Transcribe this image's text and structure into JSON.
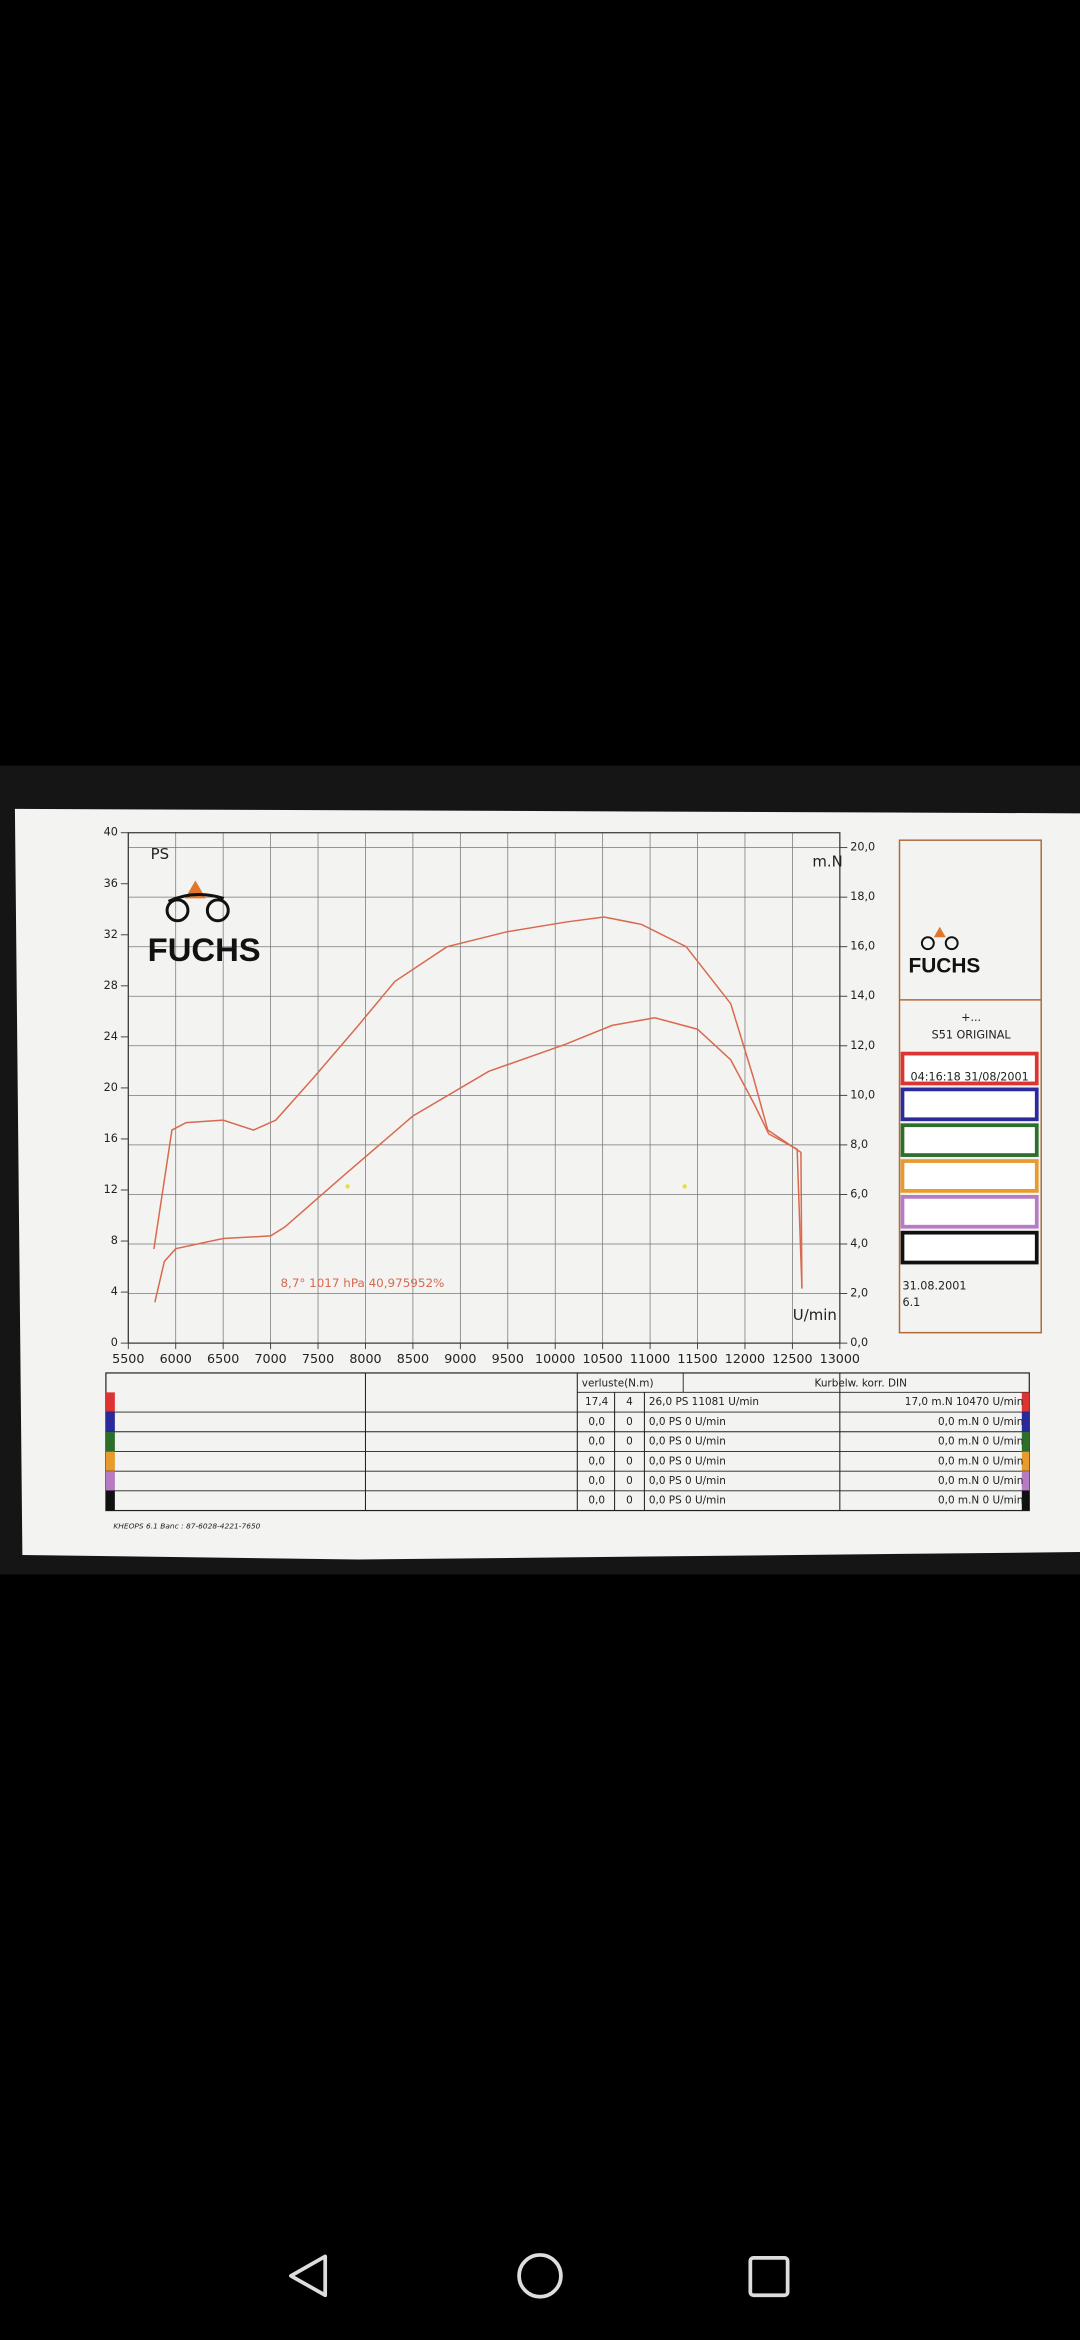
{
  "chart_data": {
    "type": "line",
    "ylabel": "PS",
    "y2label": "m.N",
    "xlabel": "U/min",
    "annotation": "8,7°  1017 hPa  40,975952%",
    "xlim": [
      5500,
      13000
    ],
    "xticks": [
      5500,
      6000,
      6500,
      7000,
      7500,
      8000,
      8500,
      9000,
      9500,
      10000,
      10500,
      11000,
      11500,
      12000,
      12500,
      13000
    ],
    "ylim": [
      0,
      40
    ],
    "yticks": [
      0,
      4,
      8,
      12,
      16,
      20,
      24,
      28,
      32,
      36,
      40
    ],
    "y2lim": [
      0,
      20.6
    ],
    "y2ticks": [
      {
        "value": 0,
        "label": "0,0"
      },
      {
        "value": 2,
        "label": "2,0"
      },
      {
        "value": 4,
        "label": "4,0"
      },
      {
        "value": 6,
        "label": "6,0"
      },
      {
        "value": 8,
        "label": "8,0"
      },
      {
        "value": 10,
        "label": "10,0"
      },
      {
        "value": 12,
        "label": "12,0"
      },
      {
        "value": 14,
        "label": "14,0"
      },
      {
        "value": 16,
        "label": "16,0"
      },
      {
        "value": 18,
        "label": "18,0"
      },
      {
        "value": 20,
        "label": "20,0"
      }
    ],
    "grid": true,
    "series": [
      {
        "color": "#d9694f",
        "x": [
          5780,
          5880,
          6000,
          6500,
          7000,
          7150,
          7750,
          8500,
          9300,
          10100,
          10600,
          11050,
          11500,
          11850,
          12100,
          12250,
          12550,
          12600
        ],
        "values": [
          3.2,
          6.4,
          7.4,
          8.2,
          8.4,
          9.1,
          13.0,
          17.8,
          21.3,
          23.4,
          24.9,
          25.5,
          24.6,
          22.2,
          18.7,
          16.4,
          15.2,
          4.4
        ]
      },
      {
        "color": "#d9694f",
        "axis": "y2",
        "x": [
          5770,
          5960,
          6110,
          6500,
          6820,
          7055,
          7450,
          7920,
          8310,
          8860,
          9490,
          10120,
          10515,
          10910,
          11380,
          11850,
          12090,
          12240,
          12590,
          12600
        ],
        "values": [
          3.8,
          8.6,
          8.9,
          9.0,
          8.6,
          9.0,
          10.7,
          12.8,
          14.6,
          16.0,
          16.6,
          17.0,
          17.2,
          16.9,
          16.0,
          13.7,
          10.7,
          8.6,
          7.7,
          2.2
        ]
      }
    ]
  },
  "logo": "FUCHS",
  "side_panel": {
    "logo": "FUCHS",
    "line1": "+...",
    "line2": "S51 ORIGINAL",
    "timestamp": "04:16:18  31/08/2001",
    "date": "31.08.2001",
    "version": "6.1",
    "box_colors": [
      "#d33",
      "#2a2a9a",
      "#2c6e2c",
      "#e89a2c",
      "#b77ac4",
      "#111"
    ]
  },
  "table": {
    "header": [
      "verluste(N.m)",
      "Kurbelw. korr. DIN"
    ],
    "row_colors": [
      "#d33",
      "#2a2a9a",
      "#2c6e2c",
      "#e89a2c",
      "#b77ac4",
      "#111"
    ],
    "rows": [
      [
        "17,4",
        "4",
        "26,0 PS 11081 U/min",
        "17,0 m.N 10470 U/min"
      ],
      [
        "0,0",
        "0",
        "0,0 PS 0 U/min",
        "0,0 m.N 0 U/min"
      ],
      [
        "0,0",
        "0",
        "0,0 PS 0 U/min",
        "0,0 m.N 0 U/min"
      ],
      [
        "0,0",
        "0",
        "0,0 PS 0 U/min",
        "0,0 m.N 0 U/min"
      ],
      [
        "0,0",
        "0",
        "0,0 PS 0 U/min",
        "0,0 m.N 0 U/min"
      ],
      [
        "0,0",
        "0",
        "0,0 PS 0 U/min",
        "0,0 m.N 0 U/min"
      ]
    ]
  },
  "footer": "KHEOPS 6.1  Banc : 87-6028-4221-7650"
}
